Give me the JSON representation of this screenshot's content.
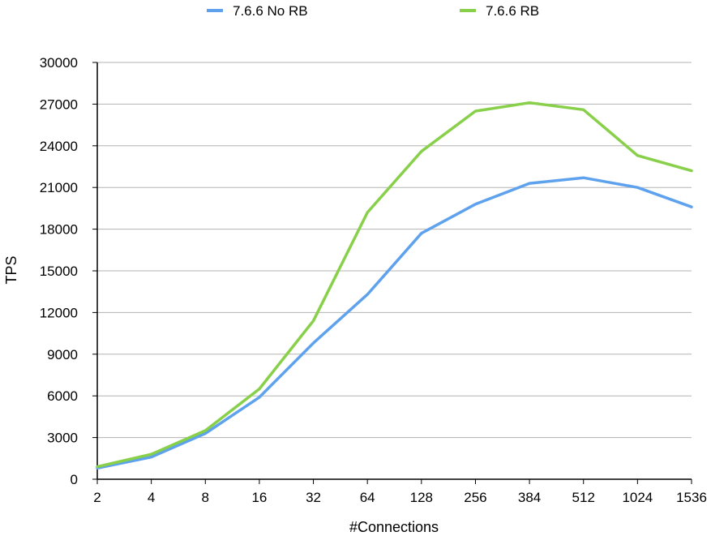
{
  "chart_data": {
    "type": "line",
    "title": "",
    "xlabel": "#Connections",
    "ylabel": "TPS",
    "categories": [
      "2",
      "4",
      "8",
      "16",
      "32",
      "64",
      "128",
      "256",
      "384",
      "512",
      "1024",
      "1536"
    ],
    "yticks": [
      "0",
      "3000",
      "6000",
      "9000",
      "12000",
      "15000",
      "18000",
      "21000",
      "24000",
      "27000",
      "30000"
    ],
    "ylim": [
      0,
      30000
    ],
    "grid": "horizontal",
    "legend_position": "top",
    "series": [
      {
        "name": "7.6.6 No RB",
        "color": "#5ea2ee",
        "values": [
          800,
          1600,
          3300,
          5900,
          9800,
          13300,
          17700,
          19800,
          21300,
          21700,
          21000,
          19600
        ]
      },
      {
        "name": "7.6.6 RB",
        "color": "#88d04a",
        "values": [
          900,
          1800,
          3500,
          6500,
          11400,
          19200,
          23600,
          26500,
          27100,
          26600,
          23300,
          22200
        ]
      }
    ]
  }
}
